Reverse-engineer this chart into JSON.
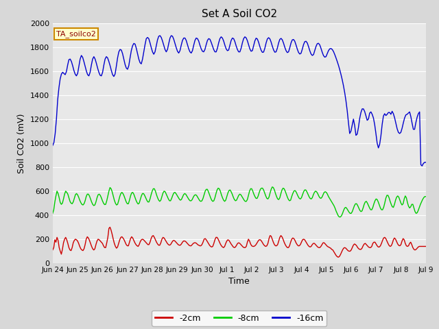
{
  "title": "Set A Soil CO2",
  "ylabel": "Soil CO2 (mV)",
  "xlabel": "Time",
  "annotation": "TA_soilco2",
  "legend": [
    "-2cm",
    "-8cm",
    "-16cm"
  ],
  "colors": [
    "#cc0000",
    "#00cc00",
    "#0000cc"
  ],
  "ylim": [
    0,
    2000
  ],
  "yticks": [
    0,
    200,
    400,
    600,
    800,
    1000,
    1200,
    1400,
    1600,
    1800,
    2000
  ],
  "background_color": "#e8e8e8",
  "grid_color": "#ffffff",
  "fig_facecolor": "#d8d8d8",
  "red_data": [
    110,
    130,
    195,
    175,
    215,
    190,
    130,
    100,
    75,
    115,
    170,
    200,
    215,
    195,
    165,
    130,
    110,
    105,
    130,
    170,
    190,
    200,
    195,
    185,
    165,
    140,
    120,
    110,
    105,
    120,
    155,
    200,
    220,
    210,
    190,
    165,
    140,
    120,
    110,
    120,
    155,
    185,
    200,
    195,
    185,
    175,
    165,
    145,
    130,
    130,
    170,
    215,
    290,
    300,
    275,
    240,
    200,
    165,
    140,
    125,
    135,
    165,
    195,
    215,
    220,
    210,
    195,
    175,
    155,
    145,
    145,
    175,
    205,
    220,
    210,
    190,
    170,
    155,
    145,
    140,
    155,
    180,
    195,
    200,
    195,
    185,
    175,
    165,
    155,
    155,
    175,
    205,
    225,
    230,
    215,
    195,
    175,
    160,
    150,
    150,
    170,
    200,
    215,
    210,
    195,
    180,
    165,
    155,
    150,
    155,
    170,
    185,
    190,
    185,
    175,
    165,
    155,
    150,
    150,
    160,
    175,
    185,
    185,
    180,
    170,
    160,
    150,
    145,
    145,
    155,
    165,
    170,
    170,
    165,
    155,
    150,
    145,
    145,
    155,
    175,
    200,
    205,
    195,
    180,
    165,
    150,
    140,
    135,
    140,
    165,
    195,
    215,
    215,
    200,
    180,
    160,
    145,
    135,
    130,
    140,
    165,
    185,
    195,
    190,
    175,
    160,
    148,
    135,
    130,
    135,
    150,
    165,
    170,
    165,
    155,
    145,
    135,
    130,
    130,
    140,
    175,
    200,
    185,
    160,
    145,
    140,
    140,
    145,
    155,
    170,
    185,
    195,
    195,
    185,
    170,
    155,
    145,
    140,
    145,
    165,
    205,
    230,
    225,
    200,
    175,
    155,
    145,
    145,
    155,
    185,
    215,
    230,
    220,
    200,
    175,
    155,
    140,
    130,
    130,
    145,
    175,
    200,
    210,
    205,
    190,
    170,
    155,
    145,
    145,
    155,
    175,
    195,
    200,
    195,
    180,
    165,
    150,
    140,
    135,
    140,
    155,
    165,
    165,
    155,
    145,
    135,
    130,
    130,
    140,
    155,
    170,
    170,
    160,
    150,
    140,
    135,
    130,
    125,
    115,
    110,
    95,
    80,
    65,
    55,
    50,
    55,
    70,
    90,
    110,
    125,
    130,
    125,
    115,
    105,
    100,
    100,
    110,
    130,
    150,
    160,
    155,
    145,
    130,
    120,
    115,
    115,
    125,
    145,
    160,
    165,
    155,
    145,
    135,
    130,
    130,
    140,
    165,
    175,
    175,
    160,
    145,
    135,
    135,
    145,
    165,
    190,
    210,
    215,
    205,
    185,
    165,
    148,
    140,
    145,
    165,
    195,
    210,
    200,
    180,
    160,
    148,
    145,
    155,
    185,
    205,
    195,
    165,
    145,
    140,
    145,
    165,
    175,
    155,
    130,
    115,
    110,
    115,
    125,
    135,
    140,
    140,
    140,
    140,
    140,
    140,
    140
  ],
  "green_data": [
    415,
    445,
    510,
    560,
    600,
    580,
    545,
    505,
    490,
    500,
    535,
    575,
    600,
    590,
    575,
    545,
    515,
    500,
    495,
    510,
    540,
    570,
    580,
    570,
    550,
    525,
    505,
    490,
    485,
    495,
    520,
    555,
    575,
    575,
    560,
    535,
    510,
    490,
    480,
    485,
    510,
    545,
    570,
    575,
    565,
    545,
    520,
    500,
    488,
    490,
    520,
    560,
    600,
    630,
    620,
    595,
    560,
    525,
    500,
    485,
    490,
    520,
    555,
    580,
    590,
    580,
    560,
    535,
    510,
    495,
    495,
    525,
    560,
    585,
    590,
    575,
    550,
    525,
    505,
    493,
    500,
    530,
    560,
    580,
    580,
    565,
    545,
    525,
    510,
    510,
    535,
    570,
    600,
    620,
    620,
    600,
    570,
    545,
    525,
    515,
    525,
    555,
    585,
    600,
    595,
    575,
    555,
    535,
    520,
    520,
    540,
    565,
    585,
    590,
    580,
    565,
    550,
    535,
    525,
    530,
    550,
    570,
    580,
    575,
    560,
    545,
    530,
    520,
    520,
    530,
    550,
    565,
    570,
    565,
    550,
    535,
    520,
    515,
    520,
    540,
    570,
    600,
    615,
    615,
    595,
    570,
    545,
    525,
    515,
    520,
    545,
    580,
    610,
    625,
    620,
    600,
    570,
    545,
    525,
    515,
    525,
    555,
    585,
    605,
    610,
    595,
    575,
    550,
    530,
    520,
    525,
    545,
    565,
    575,
    570,
    555,
    540,
    525,
    515,
    515,
    530,
    565,
    600,
    620,
    620,
    600,
    575,
    555,
    540,
    540,
    560,
    590,
    615,
    625,
    625,
    610,
    585,
    560,
    540,
    535,
    550,
    585,
    615,
    635,
    630,
    610,
    580,
    555,
    535,
    530,
    545,
    580,
    610,
    625,
    620,
    600,
    575,
    550,
    530,
    520,
    525,
    555,
    580,
    600,
    605,
    595,
    575,
    555,
    540,
    535,
    545,
    570,
    595,
    610,
    610,
    595,
    575,
    555,
    540,
    535,
    545,
    570,
    590,
    600,
    595,
    580,
    560,
    545,
    540,
    550,
    570,
    590,
    595,
    590,
    575,
    555,
    540,
    525,
    510,
    495,
    480,
    460,
    435,
    415,
    395,
    385,
    385,
    395,
    415,
    440,
    460,
    465,
    455,
    440,
    425,
    415,
    415,
    430,
    455,
    480,
    495,
    495,
    480,
    460,
    440,
    430,
    435,
    460,
    490,
    510,
    515,
    500,
    480,
    460,
    445,
    445,
    465,
    495,
    520,
    535,
    530,
    510,
    485,
    460,
    445,
    445,
    465,
    500,
    540,
    565,
    565,
    545,
    515,
    490,
    470,
    465,
    490,
    525,
    550,
    560,
    550,
    525,
    500,
    485,
    495,
    535,
    560,
    545,
    505,
    475,
    460,
    470,
    490,
    490,
    460,
    430,
    415,
    420,
    440,
    465,
    490,
    510,
    530,
    545,
    555,
    555
  ],
  "blue_data": [
    980,
    1005,
    1080,
    1200,
    1360,
    1460,
    1535,
    1575,
    1590,
    1580,
    1570,
    1595,
    1650,
    1695,
    1700,
    1680,
    1645,
    1605,
    1575,
    1560,
    1580,
    1640,
    1700,
    1730,
    1715,
    1680,
    1640,
    1600,
    1570,
    1560,
    1590,
    1650,
    1700,
    1720,
    1700,
    1665,
    1625,
    1590,
    1565,
    1560,
    1590,
    1650,
    1700,
    1720,
    1710,
    1680,
    1645,
    1605,
    1570,
    1555,
    1575,
    1640,
    1710,
    1760,
    1780,
    1775,
    1745,
    1700,
    1655,
    1625,
    1615,
    1645,
    1710,
    1770,
    1810,
    1830,
    1825,
    1790,
    1745,
    1700,
    1670,
    1660,
    1700,
    1760,
    1820,
    1870,
    1880,
    1870,
    1835,
    1795,
    1760,
    1740,
    1760,
    1810,
    1860,
    1890,
    1895,
    1880,
    1850,
    1815,
    1780,
    1760,
    1780,
    1830,
    1875,
    1895,
    1890,
    1865,
    1830,
    1795,
    1765,
    1750,
    1770,
    1815,
    1855,
    1875,
    1875,
    1855,
    1820,
    1785,
    1760,
    1750,
    1770,
    1815,
    1855,
    1875,
    1870,
    1850,
    1815,
    1785,
    1765,
    1760,
    1780,
    1820,
    1855,
    1870,
    1865,
    1840,
    1810,
    1780,
    1760,
    1760,
    1790,
    1835,
    1870,
    1885,
    1875,
    1850,
    1815,
    1785,
    1770,
    1775,
    1815,
    1855,
    1875,
    1870,
    1845,
    1810,
    1780,
    1760,
    1760,
    1790,
    1835,
    1870,
    1885,
    1877,
    1853,
    1818,
    1784,
    1765,
    1770,
    1810,
    1851,
    1874,
    1867,
    1840,
    1804,
    1774,
    1756,
    1758,
    1790,
    1834,
    1867,
    1878,
    1869,
    1842,
    1807,
    1776,
    1757,
    1760,
    1790,
    1833,
    1864,
    1872,
    1860,
    1832,
    1798,
    1770,
    1754,
    1760,
    1795,
    1835,
    1860,
    1863,
    1848,
    1817,
    1783,
    1755,
    1742,
    1748,
    1782,
    1820,
    1845,
    1848,
    1834,
    1804,
    1770,
    1743,
    1730,
    1737,
    1770,
    1805,
    1828,
    1831,
    1818,
    1789,
    1756,
    1729,
    1716,
    1720,
    1745,
    1770,
    1785,
    1788,
    1780,
    1763,
    1738,
    1710,
    1680,
    1648,
    1612,
    1572,
    1528,
    1478,
    1420,
    1352,
    1270,
    1170,
    1080,
    1100,
    1150,
    1200,
    1145,
    1065,
    1075,
    1130,
    1205,
    1255,
    1285,
    1285,
    1263,
    1228,
    1190,
    1200,
    1250,
    1260,
    1240,
    1210,
    1155,
    1080,
    1000,
    960,
    990,
    1060,
    1155,
    1225,
    1245,
    1230,
    1240,
    1255,
    1255,
    1240,
    1265,
    1245,
    1210,
    1165,
    1120,
    1090,
    1080,
    1090,
    1125,
    1170,
    1210,
    1235,
    1240,
    1250,
    1260,
    1220,
    1165,
    1115,
    1115,
    1170,
    1215,
    1245,
    1260,
    820,
    810,
    830,
    840,
    840
  ]
}
